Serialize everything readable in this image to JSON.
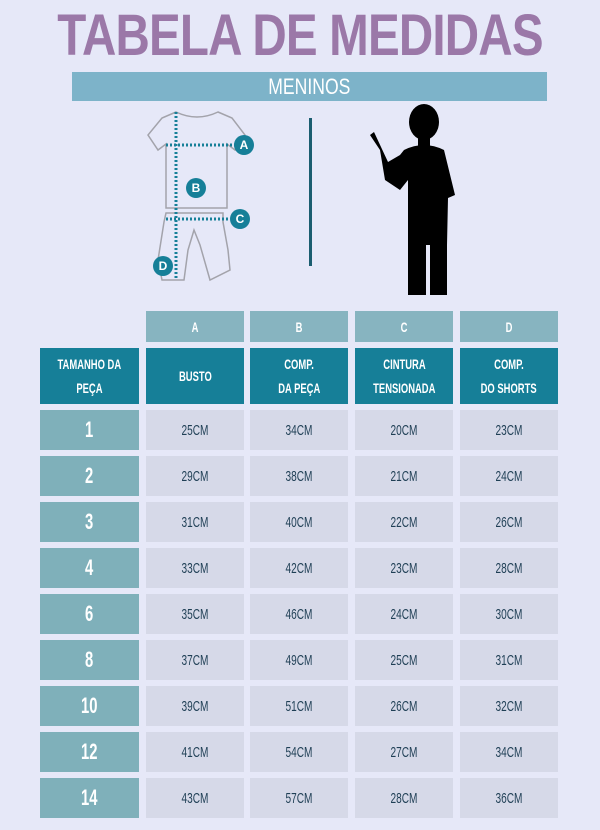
{
  "title": "TABELA DE MEDIDAS",
  "subtitle": "MENINOS",
  "diagram_labels": [
    "A",
    "B",
    "C",
    "D"
  ],
  "colors": {
    "title": "#9b78a8",
    "banner": "#7db3c9",
    "header": "#167f98",
    "letter_row": "#87b4c0",
    "size_col": "#7fb0ba",
    "cell": "#d6d9e8",
    "cell_text": "#1f3f55",
    "background": "#e6e8f8"
  },
  "table": {
    "letters": [
      "A",
      "B",
      "C",
      "D"
    ],
    "size_header": [
      "TAMANHO DA",
      "PEÇA"
    ],
    "headers": [
      [
        "BUSTO"
      ],
      [
        "COMP.",
        "DA PEÇA"
      ],
      [
        "CINTURA",
        "TENSIONADA"
      ],
      [
        "COMP.",
        "DO SHORTS"
      ]
    ],
    "rows": [
      {
        "size": "1",
        "values": [
          "25CM",
          "34CM",
          "20CM",
          "23CM"
        ]
      },
      {
        "size": "2",
        "values": [
          "29CM",
          "38CM",
          "21CM",
          "24CM"
        ]
      },
      {
        "size": "3",
        "values": [
          "31CM",
          "40CM",
          "22CM",
          "26CM"
        ]
      },
      {
        "size": "4",
        "values": [
          "33CM",
          "42CM",
          "23CM",
          "28CM"
        ]
      },
      {
        "size": "6",
        "values": [
          "35CM",
          "46CM",
          "24CM",
          "30CM"
        ]
      },
      {
        "size": "8",
        "values": [
          "37CM",
          "49CM",
          "25CM",
          "31CM"
        ]
      },
      {
        "size": "10",
        "values": [
          "39CM",
          "51CM",
          "26CM",
          "32CM"
        ]
      },
      {
        "size": "12",
        "values": [
          "41CM",
          "54CM",
          "27CM",
          "34CM"
        ]
      },
      {
        "size": "14",
        "values": [
          "43CM",
          "57CM",
          "28CM",
          "36CM"
        ]
      }
    ]
  }
}
